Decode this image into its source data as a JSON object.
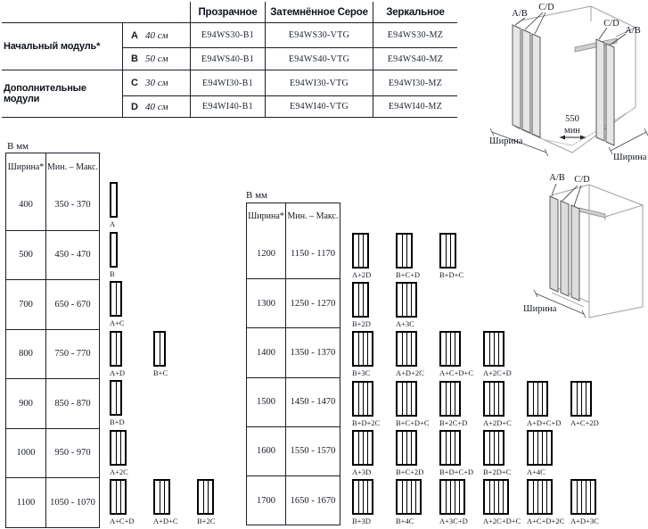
{
  "top_table": {
    "col_headers": [
      "Прозрачное",
      "Затемнённое Серое",
      "Зеркальное"
    ],
    "groups": [
      {
        "label": "Начальный модуль*",
        "rows": [
          {
            "module": "A",
            "size": "40 см",
            "codes": [
              "E94WS30-B1",
              "E94WS30-VTG",
              "E94WS30-MZ"
            ]
          },
          {
            "module": "B",
            "size": "50 см",
            "codes": [
              "E94WS40-B1",
              "E94WS40-VTG",
              "E94WS40-MZ"
            ]
          }
        ]
      },
      {
        "label": "Дополнительные модули",
        "rows": [
          {
            "module": "C",
            "size": "30 см",
            "codes": [
              "E94WI30-B1",
              "E94WI30-VTG",
              "E94WI30-MZ"
            ]
          },
          {
            "module": "D",
            "size": "40 см",
            "codes": [
              "E94WI40-B1",
              "E94WI40-VTG",
              "E94WI40-MZ"
            ]
          }
        ]
      }
    ]
  },
  "left_section": {
    "unit_label": "В мм",
    "headers": {
      "width": "Ширина*",
      "range": "Мин. – Макс."
    },
    "rows": [
      {
        "width": "400",
        "range": "350 - 370",
        "configs": [
          {
            "label": "A",
            "panels": 1
          }
        ]
      },
      {
        "width": "500",
        "range": "450 - 470",
        "configs": [
          {
            "label": "B",
            "panels": 1
          }
        ]
      },
      {
        "width": "700",
        "range": "650 - 670",
        "configs": [
          {
            "label": "A+C",
            "panels": 2
          }
        ]
      },
      {
        "width": "800",
        "range": "750 - 770",
        "configs": [
          {
            "label": "A+D",
            "panels": 2
          },
          {
            "label": "B+C",
            "panels": 2
          }
        ]
      },
      {
        "width": "900",
        "range": "850 - 870",
        "configs": [
          {
            "label": "B+D",
            "panels": 2
          }
        ]
      },
      {
        "width": "1000",
        "range": "950 - 970",
        "configs": [
          {
            "label": "A+2C",
            "panels": 3
          }
        ]
      },
      {
        "width": "1100",
        "range": "1050 - 1070",
        "configs": [
          {
            "label": "A+C+D",
            "panels": 3
          },
          {
            "label": "A+D+C",
            "panels": 3
          },
          {
            "label": "B+2C",
            "panels": 3
          }
        ]
      }
    ]
  },
  "middle_section": {
    "unit_label": "В мм",
    "headers": {
      "width": "Ширина*",
      "range": "Мин. – Макс."
    },
    "rows": [
      {
        "width": "1200",
        "range": "1150 - 1170",
        "configs": [
          {
            "label": "A+2D",
            "panels": 3
          },
          {
            "label": "B+C+D",
            "panels": 3
          },
          {
            "label": "B+D+C",
            "panels": 3
          }
        ]
      },
      {
        "width": "1300",
        "range": "1250 - 1270",
        "configs": [
          {
            "label": "B+2D",
            "panels": 3
          },
          {
            "label": "A+3C",
            "panels": 4
          }
        ]
      },
      {
        "width": "1400",
        "range": "1350 - 1370",
        "configs": [
          {
            "label": "B+3C",
            "panels": 4
          },
          {
            "label": "A+D+2C",
            "panels": 4
          },
          {
            "label": "A+C+D+C",
            "panels": 4
          },
          {
            "label": "A+2C+D",
            "panels": 4
          }
        ]
      },
      {
        "width": "1500",
        "range": "1450 - 1470",
        "configs": [
          {
            "label": "B+D+2C",
            "panels": 4
          },
          {
            "label": "B+C+D+C",
            "panels": 4
          },
          {
            "label": "B+2C+D",
            "panels": 4
          },
          {
            "label": "A+2D+C",
            "panels": 4
          },
          {
            "label": "A+D+C+D",
            "panels": 4
          },
          {
            "label": "A+C+2D",
            "panels": 4
          }
        ]
      },
      {
        "width": "1600",
        "range": "1550 - 1570",
        "configs": [
          {
            "label": "A+3D",
            "panels": 4
          },
          {
            "label": "B+C+2D",
            "panels": 4
          },
          {
            "label": "B+D+C+D",
            "panels": 4
          },
          {
            "label": "B+2D+C",
            "panels": 4
          },
          {
            "label": "A+4C",
            "panels": 5
          }
        ]
      },
      {
        "width": "1700",
        "range": "1650 - 1670",
        "configs": [
          {
            "label": "B+3D",
            "panels": 4
          },
          {
            "label": "B+4C",
            "panels": 5
          },
          {
            "label": "A+3C+D",
            "panels": 5
          },
          {
            "label": "A+2C+D+C",
            "panels": 5
          },
          {
            "label": "A+C+D+2C",
            "panels": 5
          },
          {
            "label": "A+D+3C",
            "panels": 5
          }
        ]
      }
    ]
  },
  "corner_diagram": {
    "ab_left": "A/B",
    "cd_left": "C/D",
    "cd_right": "C/D",
    "ab_right": "A/B",
    "min_value": "550",
    "min_unit": "мин",
    "width_left": "Ширина",
    "width_right": "Ширина"
  },
  "wall_diagram": {
    "ab": "A/B",
    "cd": "C/D",
    "width": "Ширина"
  }
}
